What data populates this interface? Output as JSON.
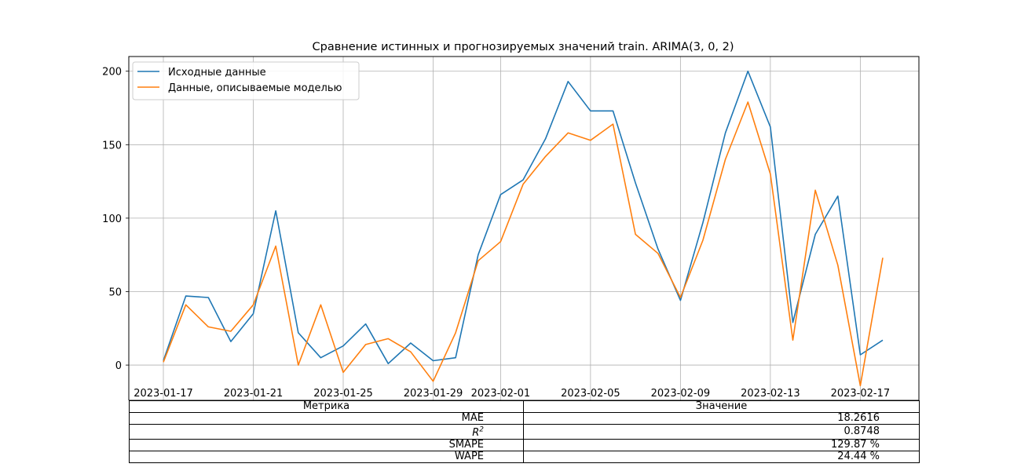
{
  "chart_data": {
    "type": "line",
    "title": "Сравнение истинных и прогнозируемых значений train. ARIMA(3, 0, 2)",
    "xlabel": "",
    "ylabel": "",
    "x": [
      "2023-01-17",
      "2023-01-18",
      "2023-01-19",
      "2023-01-20",
      "2023-01-21",
      "2023-01-22",
      "2023-01-23",
      "2023-01-24",
      "2023-01-25",
      "2023-01-26",
      "2023-01-27",
      "2023-01-28",
      "2023-01-29",
      "2023-01-30",
      "2023-01-31",
      "2023-02-01",
      "2023-02-02",
      "2023-02-03",
      "2023-02-04",
      "2023-02-05",
      "2023-02-06",
      "2023-02-07",
      "2023-02-08",
      "2023-02-09",
      "2023-02-10",
      "2023-02-11",
      "2023-02-12",
      "2023-02-13",
      "2023-02-14",
      "2023-02-15",
      "2023-02-16",
      "2023-02-17",
      "2023-02-18"
    ],
    "series": [
      {
        "name": "Исходные данные",
        "color": "#1f77b4",
        "values": [
          3,
          47,
          46,
          16,
          35,
          105,
          22,
          5,
          13,
          28,
          1,
          15,
          3,
          5,
          75,
          116,
          126,
          154,
          193,
          173,
          173,
          124,
          79,
          44,
          97,
          158,
          200,
          162,
          29,
          89,
          115,
          7,
          17
        ]
      },
      {
        "name": "Данные, описываемые моделью",
        "color": "#ff7f0e",
        "values": [
          2,
          41,
          26,
          23,
          41,
          81,
          0,
          41,
          -5,
          14,
          18,
          9,
          -11,
          22,
          71,
          84,
          123,
          142,
          158,
          153,
          164,
          89,
          76,
          46,
          85,
          140,
          179,
          130,
          17,
          119,
          68,
          -14,
          73
        ]
      }
    ],
    "xticks": [
      "2023-01-17",
      "2023-01-21",
      "2023-01-25",
      "2023-01-29",
      "2023-02-01",
      "2023-02-05",
      "2023-02-09",
      "2023-02-13",
      "2023-02-17"
    ],
    "yticks": [
      0,
      50,
      100,
      150,
      200
    ],
    "ylim": [
      -24,
      210
    ],
    "grid": true,
    "legend": "top-left"
  },
  "table": {
    "header": [
      "Метрика",
      "Значение"
    ],
    "rows": [
      {
        "metric": "MAE",
        "value": "18.2616"
      },
      {
        "metric": "R2",
        "value": "0.8748"
      },
      {
        "metric": "SMAPE",
        "value": "129.87 %"
      },
      {
        "metric": "WAPE",
        "value": "24.44 %"
      }
    ]
  }
}
